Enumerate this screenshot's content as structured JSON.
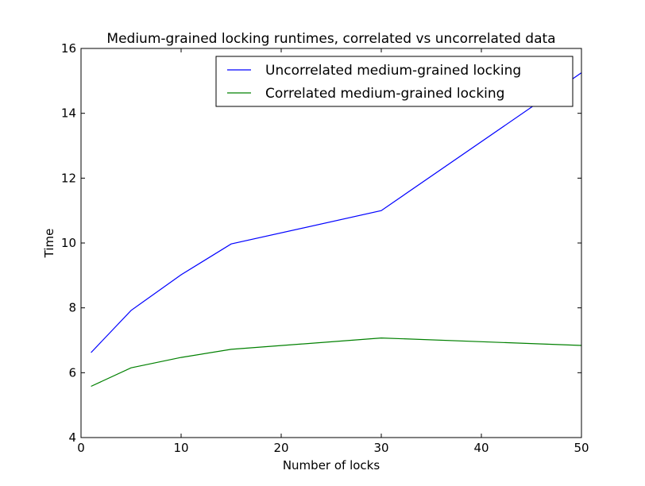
{
  "chart_data": {
    "type": "line",
    "title": "Medium-grained locking runtimes, correlated vs uncorrelated data",
    "xlabel": "Number of locks",
    "ylabel": "Time",
    "xlim": [
      0,
      50
    ],
    "ylim": [
      4,
      16
    ],
    "xticks": [
      0,
      10,
      20,
      30,
      40,
      50
    ],
    "yticks": [
      4,
      6,
      8,
      10,
      12,
      14,
      16
    ],
    "x": [
      1,
      5,
      10,
      15,
      30,
      50
    ],
    "series": [
      {
        "name": "Uncorrelated medium-grained locking",
        "color": "#0000ff",
        "values": [
          6.62,
          7.92,
          9.02,
          9.97,
          11.0,
          15.25
        ]
      },
      {
        "name": "Correlated medium-grained locking",
        "color": "#008000",
        "values": [
          5.58,
          6.15,
          6.47,
          6.72,
          7.07,
          6.84
        ]
      }
    ],
    "legend": "top-right",
    "grid": false
  }
}
